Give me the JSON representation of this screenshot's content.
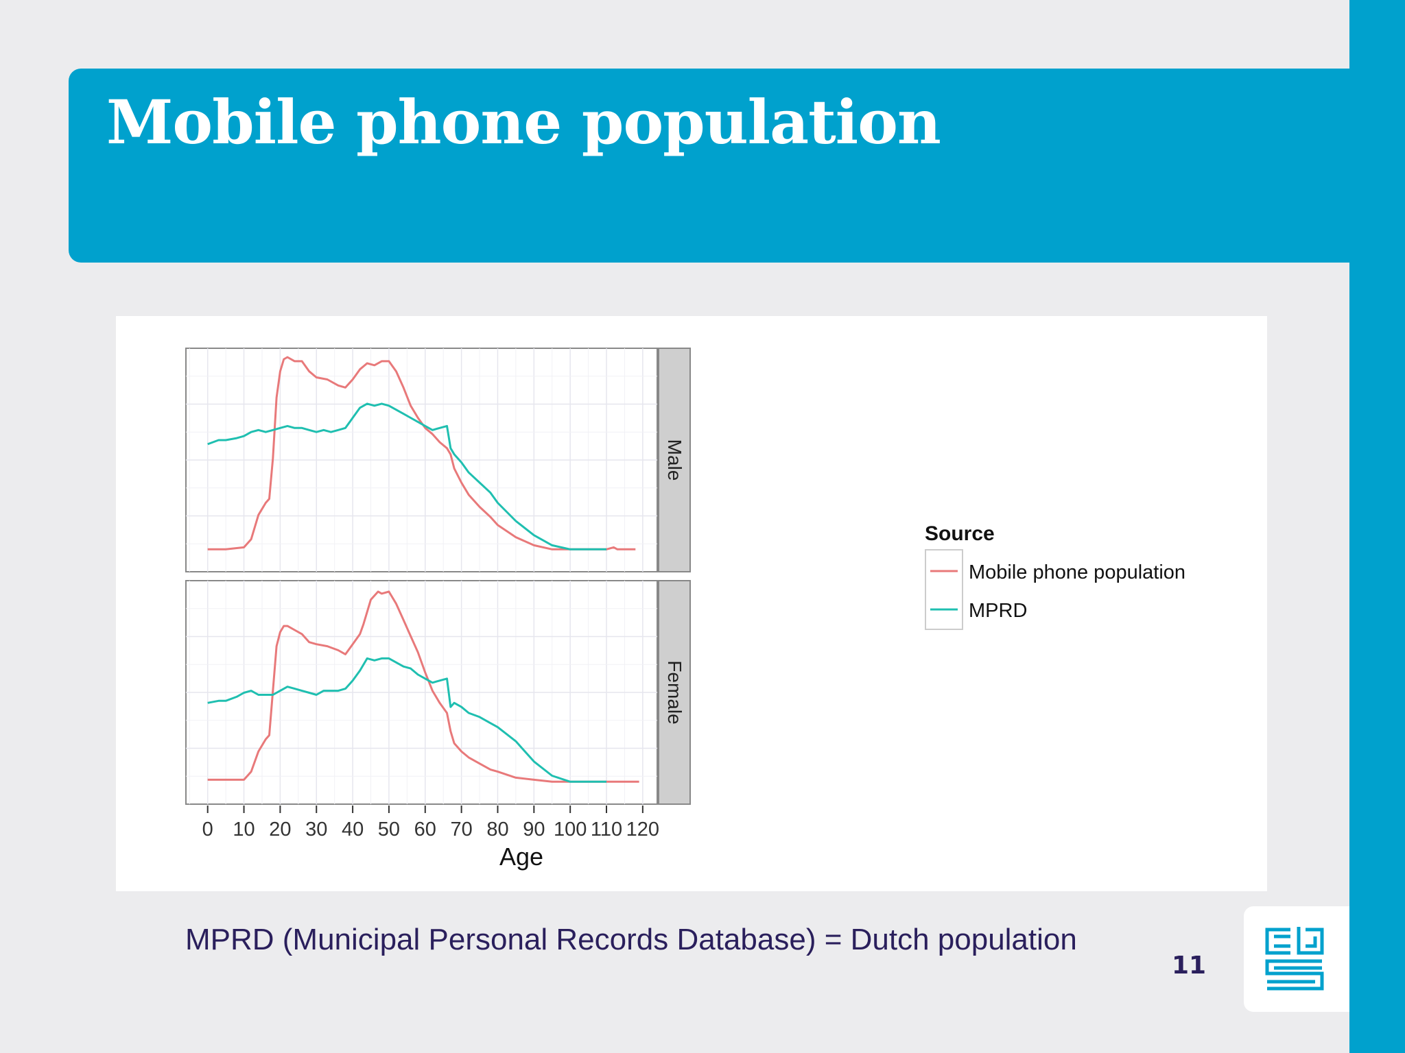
{
  "slide": {
    "title": "Mobile phone population",
    "caption": "MPRD (Municipal Personal Records Database) = Dutch population",
    "page_number": "11",
    "logo": "cbs-logo"
  },
  "colors": {
    "accent": "#00a1cd",
    "background": "#ececee",
    "text_dark": "#2a1f5c",
    "mobile": "#e8797a",
    "mprd": "#1fbfb0"
  },
  "chart_data": {
    "type": "line",
    "xlabel": "Age",
    "x_ticks": [
      0,
      10,
      20,
      30,
      40,
      50,
      60,
      70,
      80,
      90,
      100,
      110,
      120
    ],
    "xlim": [
      -6,
      124
    ],
    "ylim": [
      0,
      1
    ],
    "grid": true,
    "legend": {
      "title": "Source",
      "position": "right",
      "entries": [
        "Mobile phone population",
        "MPRD"
      ]
    },
    "facets": [
      {
        "label": "Male",
        "series": [
          {
            "name": "Mobile phone population",
            "color": "#e8797a",
            "points": [
              [
                0,
                0.05
              ],
              [
                5,
                0.05
              ],
              [
                10,
                0.06
              ],
              [
                12,
                0.1
              ],
              [
                14,
                0.22
              ],
              [
                16,
                0.28
              ],
              [
                17,
                0.3
              ],
              [
                18,
                0.5
              ],
              [
                19,
                0.8
              ],
              [
                20,
                0.93
              ],
              [
                21,
                0.99
              ],
              [
                22,
                1.0
              ],
              [
                24,
                0.98
              ],
              [
                26,
                0.98
              ],
              [
                28,
                0.93
              ],
              [
                30,
                0.9
              ],
              [
                33,
                0.89
              ],
              [
                36,
                0.86
              ],
              [
                38,
                0.85
              ],
              [
                40,
                0.89
              ],
              [
                42,
                0.94
              ],
              [
                44,
                0.97
              ],
              [
                46,
                0.96
              ],
              [
                48,
                0.98
              ],
              [
                50,
                0.98
              ],
              [
                52,
                0.93
              ],
              [
                54,
                0.85
              ],
              [
                56,
                0.76
              ],
              [
                58,
                0.7
              ],
              [
                60,
                0.65
              ],
              [
                62,
                0.62
              ],
              [
                64,
                0.58
              ],
              [
                66,
                0.55
              ],
              [
                67,
                0.52
              ],
              [
                68,
                0.45
              ],
              [
                70,
                0.38
              ],
              [
                72,
                0.32
              ],
              [
                75,
                0.26
              ],
              [
                78,
                0.21
              ],
              [
                80,
                0.17
              ],
              [
                85,
                0.11
              ],
              [
                90,
                0.07
              ],
              [
                95,
                0.05
              ],
              [
                100,
                0.05
              ],
              [
                105,
                0.05
              ],
              [
                110,
                0.05
              ],
              [
                112,
                0.06
              ],
              [
                113,
                0.05
              ],
              [
                118,
                0.05
              ]
            ]
          },
          {
            "name": "MPRD",
            "color": "#1fbfb0",
            "points": [
              [
                0,
                0.57
              ],
              [
                3,
                0.59
              ],
              [
                5,
                0.59
              ],
              [
                8,
                0.6
              ],
              [
                10,
                0.61
              ],
              [
                12,
                0.63
              ],
              [
                14,
                0.64
              ],
              [
                16,
                0.63
              ],
              [
                18,
                0.64
              ],
              [
                20,
                0.65
              ],
              [
                22,
                0.66
              ],
              [
                24,
                0.65
              ],
              [
                26,
                0.65
              ],
              [
                28,
                0.64
              ],
              [
                30,
                0.63
              ],
              [
                32,
                0.64
              ],
              [
                34,
                0.63
              ],
              [
                36,
                0.64
              ],
              [
                38,
                0.65
              ],
              [
                40,
                0.7
              ],
              [
                42,
                0.75
              ],
              [
                44,
                0.77
              ],
              [
                46,
                0.76
              ],
              [
                48,
                0.77
              ],
              [
                50,
                0.76
              ],
              [
                52,
                0.74
              ],
              [
                54,
                0.72
              ],
              [
                56,
                0.7
              ],
              [
                58,
                0.68
              ],
              [
                60,
                0.66
              ],
              [
                62,
                0.64
              ],
              [
                64,
                0.65
              ],
              [
                66,
                0.66
              ],
              [
                67,
                0.55
              ],
              [
                68,
                0.52
              ],
              [
                70,
                0.48
              ],
              [
                72,
                0.43
              ],
              [
                75,
                0.38
              ],
              [
                78,
                0.33
              ],
              [
                80,
                0.28
              ],
              [
                85,
                0.19
              ],
              [
                90,
                0.12
              ],
              [
                95,
                0.07
              ],
              [
                100,
                0.05
              ],
              [
                105,
                0.05
              ],
              [
                110,
                0.05
              ]
            ]
          }
        ]
      },
      {
        "label": "Female",
        "series": [
          {
            "name": "Mobile phone population",
            "color": "#e8797a",
            "points": [
              [
                0,
                0.06
              ],
              [
                5,
                0.06
              ],
              [
                10,
                0.06
              ],
              [
                12,
                0.1
              ],
              [
                14,
                0.2
              ],
              [
                16,
                0.26
              ],
              [
                17,
                0.28
              ],
              [
                18,
                0.5
              ],
              [
                19,
                0.72
              ],
              [
                20,
                0.79
              ],
              [
                21,
                0.82
              ],
              [
                22,
                0.82
              ],
              [
                24,
                0.8
              ],
              [
                26,
                0.78
              ],
              [
                28,
                0.74
              ],
              [
                30,
                0.73
              ],
              [
                33,
                0.72
              ],
              [
                36,
                0.7
              ],
              [
                38,
                0.68
              ],
              [
                40,
                0.73
              ],
              [
                42,
                0.78
              ],
              [
                43,
                0.83
              ],
              [
                45,
                0.95
              ],
              [
                47,
                0.99
              ],
              [
                48,
                0.98
              ],
              [
                50,
                0.99
              ],
              [
                52,
                0.93
              ],
              [
                54,
                0.85
              ],
              [
                56,
                0.77
              ],
              [
                58,
                0.69
              ],
              [
                60,
                0.59
              ],
              [
                62,
                0.5
              ],
              [
                64,
                0.44
              ],
              [
                66,
                0.39
              ],
              [
                67,
                0.3
              ],
              [
                68,
                0.24
              ],
              [
                70,
                0.2
              ],
              [
                72,
                0.17
              ],
              [
                75,
                0.14
              ],
              [
                78,
                0.11
              ],
              [
                80,
                0.1
              ],
              [
                85,
                0.07
              ],
              [
                90,
                0.06
              ],
              [
                95,
                0.05
              ],
              [
                100,
                0.05
              ],
              [
                110,
                0.05
              ],
              [
                119,
                0.05
              ]
            ]
          },
          {
            "name": "MPRD",
            "color": "#1fbfb0",
            "points": [
              [
                0,
                0.44
              ],
              [
                3,
                0.45
              ],
              [
                5,
                0.45
              ],
              [
                8,
                0.47
              ],
              [
                10,
                0.49
              ],
              [
                12,
                0.5
              ],
              [
                14,
                0.48
              ],
              [
                16,
                0.48
              ],
              [
                18,
                0.48
              ],
              [
                20,
                0.5
              ],
              [
                22,
                0.52
              ],
              [
                24,
                0.51
              ],
              [
                26,
                0.5
              ],
              [
                28,
                0.49
              ],
              [
                30,
                0.48
              ],
              [
                32,
                0.5
              ],
              [
                34,
                0.5
              ],
              [
                36,
                0.5
              ],
              [
                38,
                0.51
              ],
              [
                40,
                0.55
              ],
              [
                42,
                0.6
              ],
              [
                44,
                0.66
              ],
              [
                46,
                0.65
              ],
              [
                48,
                0.66
              ],
              [
                50,
                0.66
              ],
              [
                52,
                0.64
              ],
              [
                54,
                0.62
              ],
              [
                56,
                0.61
              ],
              [
                58,
                0.58
              ],
              [
                60,
                0.56
              ],
              [
                62,
                0.54
              ],
              [
                64,
                0.55
              ],
              [
                66,
                0.56
              ],
              [
                67,
                0.42
              ],
              [
                68,
                0.44
              ],
              [
                70,
                0.42
              ],
              [
                72,
                0.39
              ],
              [
                75,
                0.37
              ],
              [
                78,
                0.34
              ],
              [
                80,
                0.32
              ],
              [
                85,
                0.25
              ],
              [
                90,
                0.15
              ],
              [
                95,
                0.08
              ],
              [
                100,
                0.05
              ],
              [
                110,
                0.05
              ]
            ]
          }
        ]
      }
    ]
  }
}
